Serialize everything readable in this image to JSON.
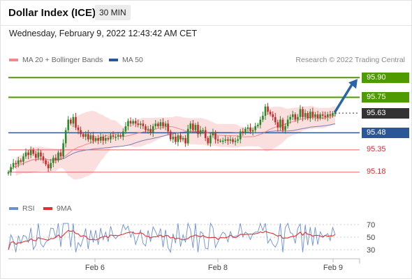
{
  "header": {
    "title": "Dollar Index (ICE)",
    "timeframe": "30 MIN",
    "datetime": "Wednesday, February 9, 2022 12:43:42 AM CET"
  },
  "legend": {
    "ma20": "MA 20 + Bollinger Bands",
    "ma50": "MA 50",
    "credit": "Research © 2022 Trading Central",
    "rsi": "RSI",
    "ma9": "9MA"
  },
  "colors": {
    "resistance": "#4f9a00",
    "current": "#333333",
    "pivot": "#2b5797",
    "support": "#e06060",
    "support_text": "#d62d2d",
    "bb_fill": "#fbdede",
    "ma20": "#f28a8a",
    "ma50": "#7a7fb5",
    "candle_up": "#2a8a2a",
    "candle_down": "#cc2a2a",
    "rsi": "#6b8fd6",
    "ma9": "#e03030",
    "arrow": "#2b64a8"
  },
  "levels": [
    {
      "value": "95.90",
      "kind": "resistance"
    },
    {
      "value": "95.75",
      "kind": "resistance"
    },
    {
      "value": "95.63",
      "kind": "current"
    },
    {
      "value": "95.48",
      "kind": "pivot"
    },
    {
      "value": "95.35",
      "kind": "support"
    },
    {
      "value": "95.18",
      "kind": "support"
    }
  ],
  "x_labels": [
    "Feb 6",
    "Feb 8",
    "Feb 9"
  ],
  "rsi_ticks": [
    "70",
    "50",
    "30"
  ],
  "chart_data": {
    "type": "candlestick",
    "y_range": [
      95.1,
      95.97
    ],
    "x": "30-minute bars, Feb 4 to Feb 9 2022",
    "closes": [
      95.18,
      95.22,
      95.25,
      95.24,
      95.27,
      95.26,
      95.3,
      95.33,
      95.31,
      95.35,
      95.32,
      95.29,
      95.33,
      95.3,
      95.27,
      95.24,
      95.21,
      95.25,
      95.29,
      95.27,
      95.33,
      95.3,
      95.4,
      95.5,
      95.58,
      95.55,
      95.6,
      95.52,
      95.5,
      95.47,
      95.45,
      95.47,
      95.43,
      95.46,
      95.42,
      95.44,
      95.42,
      95.45,
      95.42,
      95.44,
      95.43,
      95.46,
      95.45,
      95.45,
      95.46,
      95.45,
      95.49,
      95.53,
      95.57,
      95.55,
      95.57,
      95.55,
      95.54,
      95.55,
      95.53,
      95.5,
      95.51,
      95.48,
      95.53,
      95.55,
      95.53,
      95.56,
      95.53,
      95.55,
      95.49,
      95.43,
      95.45,
      95.41,
      95.46,
      95.43,
      95.44,
      95.4,
      95.51,
      95.55,
      95.5,
      95.54,
      95.47,
      95.5,
      95.5,
      95.44,
      95.4,
      95.46,
      95.48,
      95.43,
      95.42,
      95.42,
      95.42,
      95.43,
      95.42,
      95.43,
      95.41,
      95.42,
      95.43,
      95.49,
      95.48,
      95.51,
      95.52,
      95.49,
      95.5,
      95.53,
      95.54,
      95.58,
      95.61,
      95.68,
      95.64,
      95.62,
      95.6,
      95.56,
      95.52,
      95.58,
      95.5,
      95.53,
      95.58,
      95.6,
      95.62,
      95.58,
      95.6,
      95.66,
      95.6,
      95.63,
      95.59,
      95.64,
      95.6,
      95.62,
      95.59,
      95.62,
      95.61,
      95.6,
      95.62,
      95.61,
      95.63,
      95.63
    ],
    "opens": [
      95.17,
      95.18,
      95.22,
      95.25,
      95.24,
      95.27,
      95.26,
      95.3,
      95.33,
      95.31,
      95.35,
      95.32,
      95.29,
      95.33,
      95.3,
      95.27,
      95.24,
      95.21,
      95.25,
      95.29,
      95.27,
      95.33,
      95.3,
      95.4,
      95.5,
      95.58,
      95.55,
      95.6,
      95.52,
      95.5,
      95.47,
      95.45,
      95.47,
      95.43,
      95.46,
      95.42,
      95.44,
      95.42,
      95.45,
      95.42,
      95.44,
      95.43,
      95.46,
      95.45,
      95.45,
      95.46,
      95.45,
      95.49,
      95.53,
      95.57,
      95.55,
      95.57,
      95.55,
      95.54,
      95.55,
      95.53,
      95.5,
      95.51,
      95.48,
      95.53,
      95.55,
      95.53,
      95.56,
      95.53,
      95.55,
      95.49,
      95.43,
      95.45,
      95.41,
      95.46,
      95.43,
      95.44,
      95.4,
      95.51,
      95.55,
      95.5,
      95.54,
      95.47,
      95.5,
      95.5,
      95.44,
      95.4,
      95.46,
      95.48,
      95.43,
      95.42,
      95.42,
      95.42,
      95.43,
      95.42,
      95.43,
      95.41,
      95.42,
      95.43,
      95.49,
      95.48,
      95.51,
      95.52,
      95.49,
      95.5,
      95.53,
      95.54,
      95.58,
      95.61,
      95.68,
      95.64,
      95.62,
      95.6,
      95.56,
      95.52,
      95.58,
      95.5,
      95.53,
      95.58,
      95.6,
      95.62,
      95.58,
      95.6,
      95.66,
      95.6,
      95.63,
      95.59,
      95.64,
      95.6,
      95.62,
      95.59,
      95.62,
      95.61,
      95.6,
      95.62,
      95.61,
      95.63
    ]
  }
}
